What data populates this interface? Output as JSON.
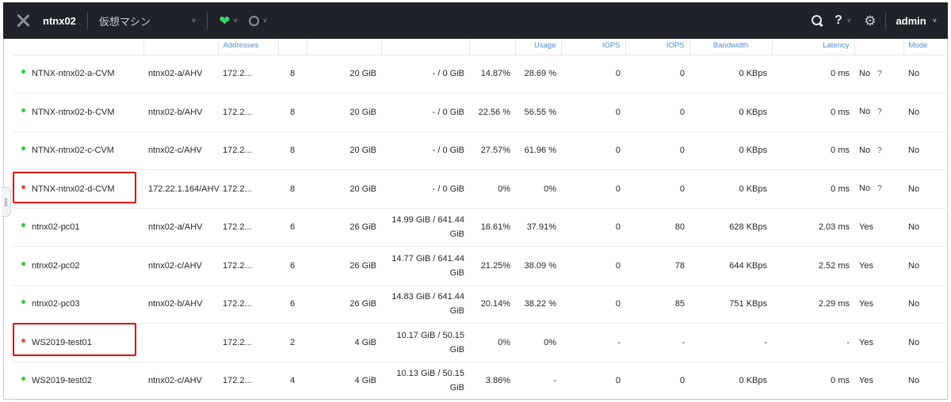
{
  "topbar": {
    "cluster_name": "ntnx02",
    "menu_label": "仮想マシン",
    "menu_caret": "˅",
    "health_caret": "˅",
    "task_caret": "˅",
    "help_label": "?",
    "help_caret": "˅",
    "user_name": "admin",
    "user_caret": "˅"
  },
  "icons": {
    "logo": "nutanix-logo-icon",
    "health": "heart-pulse-icon",
    "tasks": "ring-icon",
    "search": "search-icon",
    "gear": "gear-icon"
  },
  "colors": {
    "topbar_bg": "#1f2228",
    "health_green": "#3cd36e",
    "header_text": "#4f8ed4",
    "status_on": "#2ecc40",
    "status_off": "#ef4444",
    "highlight": "#e00000"
  },
  "table": {
    "headers": [
      "",
      "",
      "Addresses",
      "",
      "",
      "",
      "",
      "Usage",
      "IOPS",
      "IOPS",
      "Bandwidth",
      "Latency",
      "",
      "Mode"
    ],
    "rows": [
      {
        "status": "on",
        "name": "NTNX-ntnx02-a-CVM",
        "host": "ntnx02-a/AHV",
        "ip": "172.2...",
        "cores": "8",
        "memory": "20 GiB",
        "storage": "- / 0 GiB",
        "cpu": "14.87%",
        "mem_usage": "28.69 %",
        "read_iops": "0",
        "write_iops": "0",
        "bandwidth": "0 KBps",
        "latency": "0 ms",
        "flash": "No",
        "flash_help": "?",
        "mode": "No"
      },
      {
        "status": "on",
        "name": "NTNX-ntnx02-b-CVM",
        "host": "ntnx02-b/AHV",
        "ip": "172.2...",
        "cores": "8",
        "memory": "20 GiB",
        "storage": "- / 0 GiB",
        "cpu": "22.56 %",
        "mem_usage": "56.55 %",
        "read_iops": "0",
        "write_iops": "0",
        "bandwidth": "0 KBps",
        "latency": "0 ms",
        "flash": "No",
        "flash_help": "?",
        "mode": "No"
      },
      {
        "status": "on",
        "name": "NTNX-ntnx02-c-CVM",
        "host": "ntnx02-c/AHV",
        "ip": "172.2...",
        "cores": "8",
        "memory": "20 GiB",
        "storage": "- / 0 GiB",
        "cpu": "27.57%",
        "mem_usage": "61.96 %",
        "read_iops": "0",
        "write_iops": "0",
        "bandwidth": "0 KBps",
        "latency": "0 ms",
        "flash": "No",
        "flash_help": "?",
        "mode": "No"
      },
      {
        "status": "off",
        "name": "NTNX-ntnx02-d-CVM",
        "host": "172.22.1.164/AHV",
        "ip": "172.2...",
        "cores": "8",
        "memory": "20 GiB",
        "storage": "- / 0 GiB",
        "cpu": "0%",
        "mem_usage": "0%",
        "read_iops": "0",
        "write_iops": "0",
        "bandwidth": "0 KBps",
        "latency": "0 ms",
        "flash": "No",
        "flash_help": "?",
        "mode": "No"
      },
      {
        "status": "on",
        "name": "ntnx02-pc01",
        "host": "ntnx02-a/AHV",
        "ip": "172.2...",
        "cores": "6",
        "memory": "26 GiB",
        "storage": "14.99 GiB / 641.44 GiB",
        "cpu": "16.61%",
        "mem_usage": "37.91%",
        "read_iops": "0",
        "write_iops": "80",
        "bandwidth": "628 KBps",
        "latency": "2.03 ms",
        "flash": "Yes",
        "flash_help": "",
        "mode": "No"
      },
      {
        "status": "on",
        "name": "ntnx02-pc02",
        "host": "ntnx02-c/AHV",
        "ip": "172.2...",
        "cores": "6",
        "memory": "26 GiB",
        "storage": "14.77 GiB / 641.44 GiB",
        "cpu": "21.25%",
        "mem_usage": "38.09 %",
        "read_iops": "0",
        "write_iops": "78",
        "bandwidth": "644 KBps",
        "latency": "2.52 ms",
        "flash": "Yes",
        "flash_help": "",
        "mode": "No"
      },
      {
        "status": "on",
        "name": "ntnx02-pc03",
        "host": "ntnx02-b/AHV",
        "ip": "172.2...",
        "cores": "6",
        "memory": "26 GiB",
        "storage": "14.83 GiB / 641.44 GiB",
        "cpu": "20.14%",
        "mem_usage": "38.22 %",
        "read_iops": "0",
        "write_iops": "85",
        "bandwidth": "751 KBps",
        "latency": "2.29 ms",
        "flash": "Yes",
        "flash_help": "",
        "mode": "No"
      },
      {
        "status": "off",
        "name": "WS2019-test01",
        "host": "",
        "ip": "172.2...",
        "cores": "2",
        "memory": "4 GiB",
        "storage": "10.17 GiB / 50.15 GiB",
        "cpu": "0%",
        "mem_usage": "0%",
        "read_iops": "-",
        "write_iops": "-",
        "bandwidth": "-",
        "latency": "-",
        "flash": "Yes",
        "flash_help": "",
        "mode": "No"
      },
      {
        "status": "on",
        "name": "WS2019-test02",
        "host": "ntnx02-c/AHV",
        "ip": "172.2...",
        "cores": "4",
        "memory": "4 GiB",
        "storage": "10.13 GiB / 50.15 GiB",
        "cpu": "3.86%",
        "mem_usage": "-",
        "read_iops": "0",
        "write_iops": "0",
        "bandwidth": "0 KBps",
        "latency": "0 ms",
        "flash": "Yes",
        "flash_help": "",
        "mode": "No"
      }
    ]
  }
}
